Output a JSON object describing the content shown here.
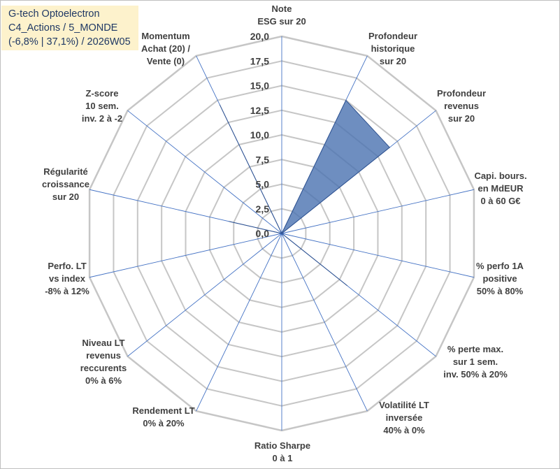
{
  "title_box": {
    "line1": "G-tech Optoelectron",
    "line2": "C4_Actions / 5_MONDE",
    "line3": "(-6,8% | 37,1%) / 2026W05"
  },
  "colors": {
    "grid": "#c6c6c6",
    "spoke": "#4472c4",
    "series_fill": "#4a72b0",
    "series_stroke": "#2f528f",
    "title_bg": "#fdf2cc",
    "title_text": "#1f3864"
  },
  "chart_data": {
    "type": "radar",
    "rmin": 0,
    "rmax": 20,
    "ticks": [
      "0,0",
      "2,5",
      "5,0",
      "7,5",
      "10,0",
      "12,5",
      "15,0",
      "17,5",
      "20,0"
    ],
    "axes": [
      {
        "lines": [
          "Note",
          "ESG sur 20"
        ]
      },
      {
        "lines": [
          "Profondeur",
          "historique",
          "sur 20"
        ]
      },
      {
        "lines": [
          "Profondeur",
          "revenus",
          "sur 20"
        ]
      },
      {
        "lines": [
          "Capi. bours.",
          "en MdEUR",
          "0 à 60 G€"
        ]
      },
      {
        "lines": [
          "% perfo 1A",
          "positive",
          "50% à 80%"
        ]
      },
      {
        "lines": [
          "% perte max.",
          "sur 1 sem.",
          "inv. 50% à 20%"
        ]
      },
      {
        "lines": [
          "Volatilité LT",
          "inversée",
          "40% à 0%"
        ]
      },
      {
        "lines": [
          "Ratio Sharpe",
          "0 à 1"
        ]
      },
      {
        "lines": [
          "Rendement LT",
          "0% à 20%"
        ]
      },
      {
        "lines": [
          "Niveau LT",
          "revenus",
          "reccurents",
          "0% à 6%"
        ]
      },
      {
        "lines": [
          "Perfo. LT",
          "vs index",
          "-8% à 12%"
        ]
      },
      {
        "lines": [
          "Régularité",
          "croissance",
          "sur 20"
        ]
      },
      {
        "lines": [
          "Z-score",
          "10 sem.",
          "inv. 2 à -2"
        ]
      },
      {
        "lines": [
          "Momentum",
          "Achat (20) /",
          "Vente (0)"
        ]
      }
    ],
    "series": [
      {
        "name": "G-tech Optoelectron",
        "values": [
          0,
          15,
          14,
          0,
          0,
          8.5,
          0,
          0,
          0,
          0,
          0,
          5.5,
          0,
          14.5
        ]
      }
    ]
  }
}
